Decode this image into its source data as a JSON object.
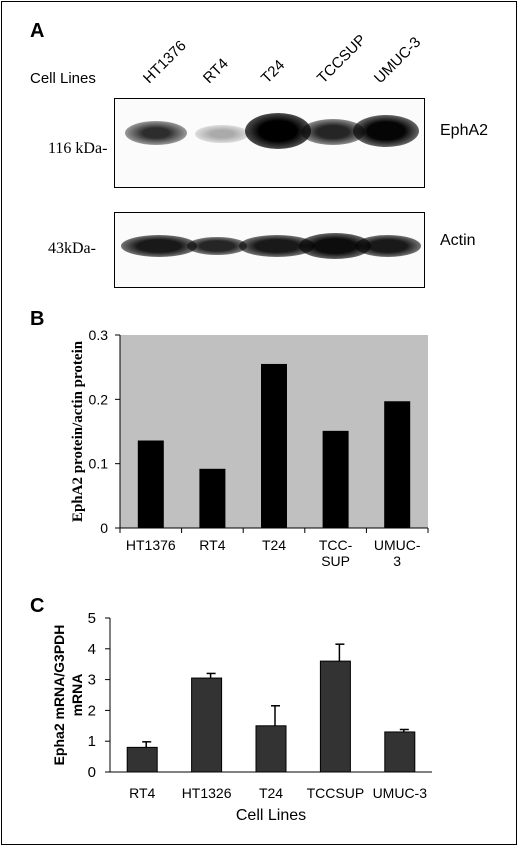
{
  "panel_a": {
    "letter": "A",
    "cell_lines_label": "Cell Lines",
    "lanes": [
      "HT1376",
      "RT4",
      "T24",
      "TCCSUP",
      "UMUC-3"
    ],
    "ephA2_marker": "116 kDa-",
    "ephA2_label": "EphA2",
    "actin_marker": "43kDa-",
    "actin_label": "Actin"
  },
  "chart_data": [
    {
      "panel": "B",
      "type": "bar",
      "categories": [
        "HT1376",
        "RT4",
        "T24",
        "TCC-SUP",
        "UMUC-3"
      ],
      "category_lines": [
        [
          "HT1376"
        ],
        [
          "RT4"
        ],
        [
          "T24"
        ],
        [
          "TCC-",
          "SUP"
        ],
        [
          "UMUC-",
          "3"
        ]
      ],
      "values": [
        0.136,
        0.092,
        0.255,
        0.151,
        0.197
      ],
      "ylabel": "EphA2 protein/actin protein",
      "xlabel": "",
      "ylim": [
        0,
        0.3
      ],
      "yticks": [
        "0",
        "0.1",
        "0.2",
        "0.3"
      ],
      "plot_background": "#c0c0c0",
      "bar_color": "#000000",
      "grid": false
    },
    {
      "panel": "C",
      "type": "bar",
      "categories": [
        "RT4",
        "HT1326",
        "T24",
        "TCCSUP",
        "UMUC-3"
      ],
      "values": [
        0.8,
        3.05,
        1.5,
        3.6,
        1.3
      ],
      "errors": [
        0.18,
        0.15,
        0.65,
        0.55,
        0.08
      ],
      "ylabel_lines": [
        "Epha2 mRNA/G3PDH",
        "mRNA"
      ],
      "xlabel": "Cell Lines",
      "ylim": [
        0,
        5
      ],
      "yticks": [
        "0",
        "1",
        "2",
        "3",
        "4",
        "5"
      ],
      "plot_background": "#ffffff",
      "bar_color": "#333333",
      "grid": false
    }
  ]
}
